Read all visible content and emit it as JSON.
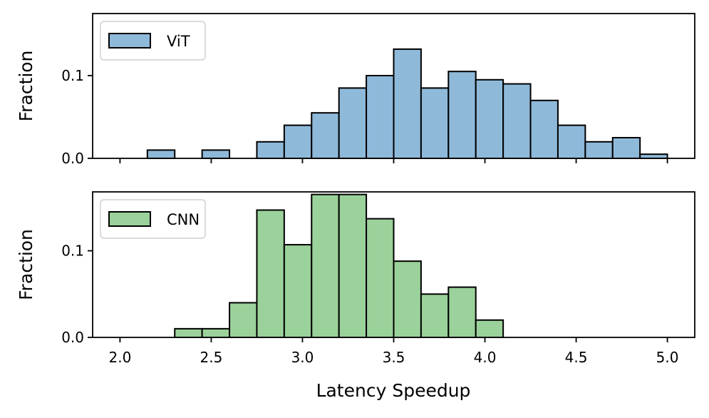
{
  "chart_data": {
    "type": "histogram",
    "xlabel": "Latency Speedup",
    "ylabel": "Fraction",
    "sharex": true,
    "xlim": [
      1.85,
      5.15
    ],
    "xticks": [
      "2.0",
      "2.5",
      "3.0",
      "3.5",
      "4.0",
      "4.5",
      "5.0"
    ],
    "bin_edges": [
      2.0,
      2.15,
      2.3,
      2.45,
      2.6,
      2.75,
      2.9,
      3.05,
      3.2,
      3.35,
      3.5,
      3.65,
      3.8,
      3.95,
      4.1,
      4.25,
      4.4,
      4.55,
      4.7,
      4.85,
      5.0
    ],
    "panels": [
      {
        "name": "vit",
        "series": "ViT",
        "color": "#8fb9d9",
        "ylim": [
          0,
          0.175
        ],
        "yticks": [
          "0.0",
          "0.1"
        ],
        "values": [
          0.0,
          0.01,
          0.0,
          0.01,
          0.0,
          0.02,
          0.04,
          0.055,
          0.085,
          0.1,
          0.132,
          0.085,
          0.105,
          0.095,
          0.09,
          0.07,
          0.04,
          0.02,
          0.025,
          0.005
        ]
      },
      {
        "name": "cnn",
        "series": "CNN",
        "color": "#9bd19a",
        "ylim": [
          0,
          0.168
        ],
        "yticks": [
          "0.0",
          "0.1"
        ],
        "values": [
          0.0,
          0.0,
          0.01,
          0.01,
          0.04,
          0.147,
          0.107,
          0.165,
          0.165,
          0.137,
          0.088,
          0.05,
          0.058,
          0.02,
          0.0,
          0.0,
          0.0,
          0.0,
          0.0,
          0.0
        ]
      }
    ]
  }
}
